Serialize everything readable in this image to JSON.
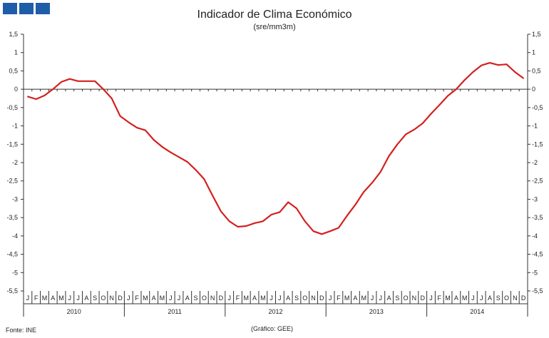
{
  "header": {
    "title": "Indicador de Clima  Económico",
    "subtitle": "(sre/mm3m)"
  },
  "footer": {
    "source": "Fonte:  INE",
    "credit": "(Gráfico:  GEE)"
  },
  "colors": {
    "series": "#d42020",
    "axis": "#333333",
    "logo": "#1f5da8"
  },
  "chart_data": {
    "type": "line",
    "title": "Indicador de Clima  Económico",
    "subtitle": "(sre/mm3m)",
    "ylim": [
      -5.5,
      1.5
    ],
    "yticks": [
      1.5,
      1,
      0.5,
      0,
      -0.5,
      -1,
      -1.5,
      -2,
      -2.5,
      -3,
      -3.5,
      -4,
      -4.5,
      -5,
      -5.5
    ],
    "ytick_labels": [
      "1,5",
      "1",
      "0,5",
      "0",
      "-0,5",
      "-1",
      "-1,5",
      "-2",
      "-2,5",
      "-3",
      "-3,5",
      "-4",
      "-4,5",
      "-5",
      "-5,5"
    ],
    "month_labels": [
      "J",
      "F",
      "M",
      "A",
      "M",
      "J",
      "J",
      "A",
      "S",
      "O",
      "N",
      "D"
    ],
    "years": [
      "2010",
      "2011",
      "2012",
      "2013",
      "2014"
    ],
    "grid": false,
    "series": [
      {
        "values": [
          -0.2,
          -0.27,
          -0.17,
          0.0,
          0.2,
          0.28,
          0.22,
          0.22,
          0.22,
          0.0,
          -0.25,
          -0.73,
          -0.9,
          -1.05,
          -1.12,
          -1.38,
          -1.57,
          -1.72,
          -1.85,
          -1.98,
          -2.2,
          -2.45,
          -2.9,
          -3.33,
          -3.6,
          -3.75,
          -3.73,
          -3.65,
          -3.6,
          -3.42,
          -3.35,
          -3.08,
          -3.25,
          -3.6,
          -3.87,
          -3.95,
          -3.87,
          -3.78,
          -3.45,
          -3.15,
          -2.8,
          -2.55,
          -2.25,
          -1.82,
          -1.5,
          -1.23,
          -1.1,
          -0.93,
          -0.67,
          -0.43,
          -0.18,
          0.0,
          0.25,
          0.47,
          0.65,
          0.72,
          0.66,
          0.68,
          0.47,
          0.3
        ]
      }
    ]
  }
}
